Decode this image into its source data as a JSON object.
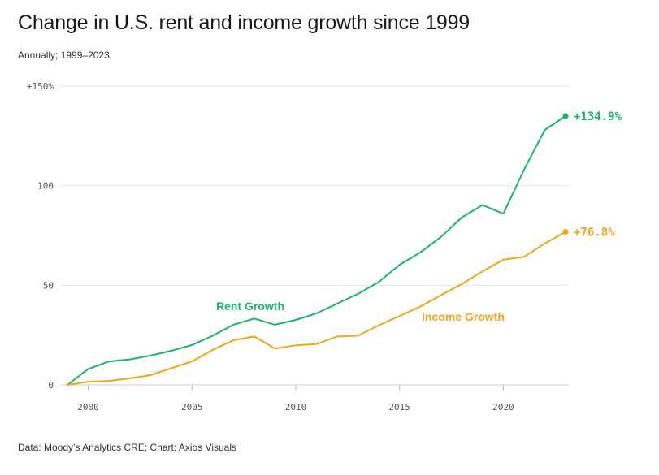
{
  "title": "Change in U.S. rent and income growth since 1999",
  "subtitle": "Annually; 1999–2023",
  "source": "Data: Moody’s Analytics CRE; Chart: Axios Visuals",
  "chart_data": {
    "type": "line",
    "x": [
      1999,
      2000,
      2001,
      2002,
      2003,
      2004,
      2005,
      2006,
      2007,
      2008,
      2009,
      2010,
      2011,
      2012,
      2013,
      2014,
      2015,
      2016,
      2017,
      2018,
      2019,
      2020,
      2021,
      2022,
      2023
    ],
    "xticks": [
      "2000",
      "2005",
      "2010",
      "2015",
      "2020"
    ],
    "yticks": [
      "0",
      "50",
      "100",
      "+150%"
    ],
    "ylim": [
      0,
      150
    ],
    "xlim": [
      1999,
      2023
    ],
    "grid": "horizontal",
    "series": [
      {
        "name": "Rent Growth",
        "color": "#1fb36f",
        "end_label": "+134.9%",
        "values": [
          0,
          8,
          11.8,
          12.8,
          14.7,
          17.1,
          20,
          24.7,
          30.2,
          33.3,
          30.2,
          32.6,
          35.9,
          40.8,
          45.7,
          51.6,
          60.3,
          66.5,
          74.3,
          84,
          90.3,
          85.9,
          108,
          128,
          134.9
        ]
      },
      {
        "name": "Income Growth",
        "color": "#f0a51c",
        "end_label": "+76.8%",
        "values": [
          0,
          1.6,
          2,
          3.3,
          4.9,
          8.4,
          11.8,
          17.6,
          22.4,
          24.3,
          18.2,
          19.9,
          20.5,
          24.3,
          24.7,
          29.9,
          34.6,
          39.3,
          45.1,
          50.6,
          57,
          62.9,
          64.3,
          71,
          76.8
        ]
      }
    ]
  }
}
